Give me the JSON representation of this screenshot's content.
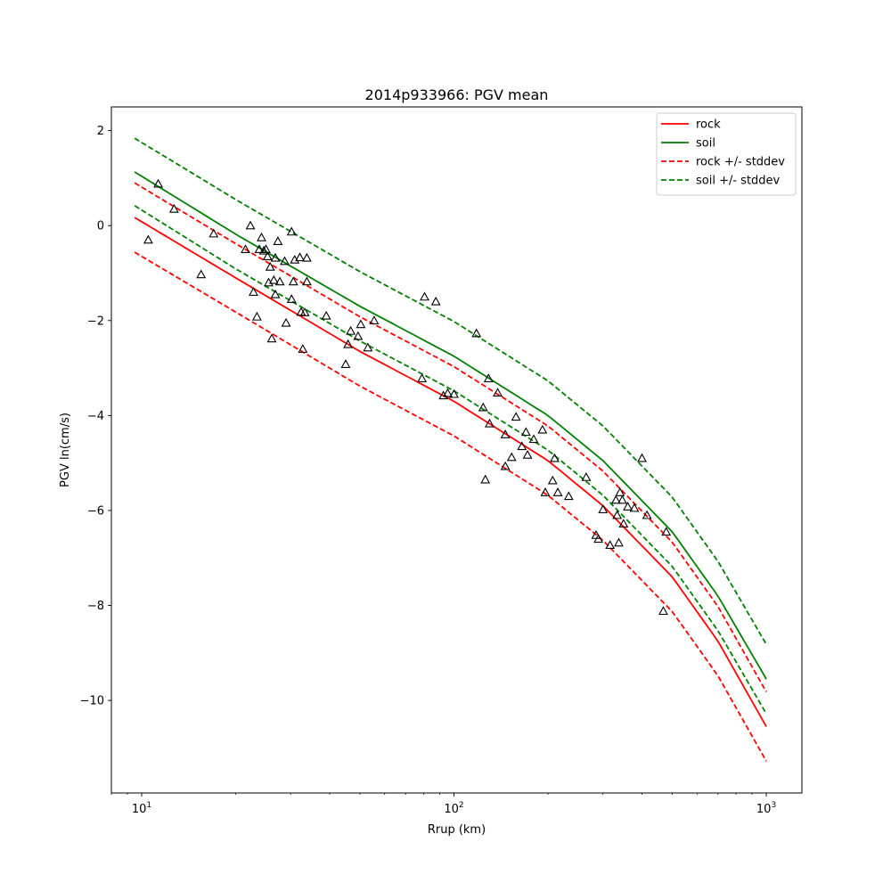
{
  "chart_data": {
    "type": "scatter",
    "title": "2014p933966: PGV mean",
    "xlabel": "Rrup (km)",
    "ylabel": "PGV ln(cm/s)",
    "xscale": "log",
    "xlim": [
      8,
      1300
    ],
    "ylim": [
      -11.95,
      2.5
    ],
    "x_ticks": [
      10,
      100,
      1000
    ],
    "x_tick_labels": [
      {
        "base": "10",
        "exp": "1"
      },
      {
        "base": "10",
        "exp": "2"
      },
      {
        "base": "10",
        "exp": "3"
      }
    ],
    "y_ticks": [
      2,
      0,
      -2,
      -4,
      -6,
      -8,
      -10
    ],
    "y_tick_labels": [
      "2",
      "0",
      "−2",
      "−4",
      "−6",
      "−8",
      "−10"
    ],
    "grid": false,
    "legend_position": "top-right",
    "lines": [
      {
        "name": "rock",
        "color": "#ff0000",
        "style": "solid",
        "x": [
          9.5,
          20,
          50,
          100,
          200,
          300,
          500,
          700,
          1000
        ],
        "y": [
          0.17,
          -1.1,
          -2.65,
          -3.7,
          -4.95,
          -5.9,
          -7.4,
          -8.75,
          -10.55
        ]
      },
      {
        "name": "soil",
        "color": "#008000",
        "style": "solid",
        "x": [
          9.5,
          20,
          50,
          100,
          200,
          300,
          500,
          700,
          1000
        ],
        "y": [
          1.13,
          -0.18,
          -1.7,
          -2.75,
          -4.0,
          -4.95,
          -6.45,
          -7.8,
          -9.55
        ]
      },
      {
        "name": "rock +/- stddev",
        "color": "#ff0000",
        "style": "dashed",
        "x": [
          9.5,
          20,
          50,
          100,
          200,
          300,
          500,
          700,
          1000
        ],
        "y": [
          0.9,
          -0.38,
          -1.92,
          -2.97,
          -4.22,
          -5.17,
          -6.67,
          -8.02,
          -9.82
        ]
      },
      {
        "name": "",
        "color": "#ff0000",
        "style": "dashed",
        "x": [
          9.5,
          20,
          50,
          100,
          200,
          300,
          500,
          700,
          1000
        ],
        "y": [
          -0.56,
          -1.82,
          -3.38,
          -4.43,
          -5.68,
          -6.63,
          -8.13,
          -9.48,
          -11.28
        ]
      },
      {
        "name": "soil +/- stddev",
        "color": "#008000",
        "style": "dashed",
        "x": [
          9.5,
          20,
          50,
          100,
          200,
          300,
          500,
          700,
          1000
        ],
        "y": [
          1.84,
          0.55,
          -0.97,
          -2.02,
          -3.27,
          -4.22,
          -5.72,
          -7.07,
          -8.82
        ]
      },
      {
        "name": "",
        "color": "#008000",
        "style": "dashed",
        "x": [
          9.5,
          20,
          50,
          100,
          200,
          300,
          500,
          700,
          1000
        ],
        "y": [
          0.42,
          -0.91,
          -2.43,
          -3.48,
          -4.73,
          -5.68,
          -7.18,
          -8.53,
          -10.28
        ]
      }
    ],
    "points": [
      [
        11.3,
        0.88
      ],
      [
        10.5,
        -0.3
      ],
      [
        12.7,
        0.35
      ],
      [
        15.5,
        -1.03
      ],
      [
        17,
        -0.17
      ],
      [
        21.5,
        -0.5
      ],
      [
        22.3,
        0
      ],
      [
        22.8,
        -1.4
      ],
      [
        23.4,
        -1.92
      ],
      [
        23.8,
        -0.5
      ],
      [
        24.2,
        -0.25
      ],
      [
        24.6,
        -0.53
      ],
      [
        25,
        -0.5
      ],
      [
        25.3,
        -0.65
      ],
      [
        25.5,
        -1.2
      ],
      [
        25.8,
        -0.87
      ],
      [
        26.1,
        -2.38
      ],
      [
        26.5,
        -1.15
      ],
      [
        26.8,
        -0.68
      ],
      [
        26.8,
        -1.45
      ],
      [
        27.3,
        -0.33
      ],
      [
        27.7,
        -1.18
      ],
      [
        28.7,
        -0.75
      ],
      [
        29,
        -2.05
      ],
      [
        30.2,
        -0.13
      ],
      [
        30.2,
        -1.55
      ],
      [
        30.6,
        -1.18
      ],
      [
        30.9,
        -0.72
      ],
      [
        32.1,
        -0.67
      ],
      [
        32.4,
        -1.82
      ],
      [
        32.8,
        -2.6
      ],
      [
        33.3,
        -1.83
      ],
      [
        33.8,
        -0.68
      ],
      [
        33.8,
        -1.18
      ],
      [
        39,
        -1.9
      ],
      [
        45,
        -2.92
      ],
      [
        45.8,
        -2.5
      ],
      [
        46.7,
        -2.22
      ],
      [
        49.3,
        -2.33
      ],
      [
        50.3,
        -2.08
      ],
      [
        53,
        -2.57
      ],
      [
        55.5,
        -2.0
      ],
      [
        79,
        -3.22
      ],
      [
        80.5,
        -1.5
      ],
      [
        87.5,
        -1.6
      ],
      [
        92.5,
        -3.58
      ],
      [
        95.5,
        -3.53
      ],
      [
        100,
        -3.55
      ],
      [
        118,
        -2.27
      ],
      [
        124,
        -3.83
      ],
      [
        126,
        -5.35
      ],
      [
        129,
        -3.22
      ],
      [
        130,
        -4.17
      ],
      [
        138,
        -3.52
      ],
      [
        146,
        -4.4
      ],
      [
        146,
        -5.07
      ],
      [
        153,
        -4.88
      ],
      [
        158,
        -4.03
      ],
      [
        165,
        -4.65
      ],
      [
        170,
        -4.35
      ],
      [
        172,
        -4.83
      ],
      [
        180,
        -4.5
      ],
      [
        192,
        -4.3
      ],
      [
        196,
        -5.62
      ],
      [
        207,
        -5.37
      ],
      [
        210,
        -4.9
      ],
      [
        215,
        -5.62
      ],
      [
        233,
        -5.7
      ],
      [
        265,
        -5.3
      ],
      [
        285,
        -6.52
      ],
      [
        290,
        -6.6
      ],
      [
        300,
        -5.98
      ],
      [
        316,
        -6.73
      ],
      [
        330,
        -5.78
      ],
      [
        333,
        -6.1
      ],
      [
        337,
        -6.68
      ],
      [
        340,
        -5.62
      ],
      [
        346,
        -5.78
      ],
      [
        349,
        -6.28
      ],
      [
        360,
        -5.92
      ],
      [
        378,
        -5.95
      ],
      [
        400,
        -4.9
      ],
      [
        415,
        -6.1
      ],
      [
        468,
        -8.12
      ],
      [
        478,
        -6.45
      ]
    ]
  }
}
